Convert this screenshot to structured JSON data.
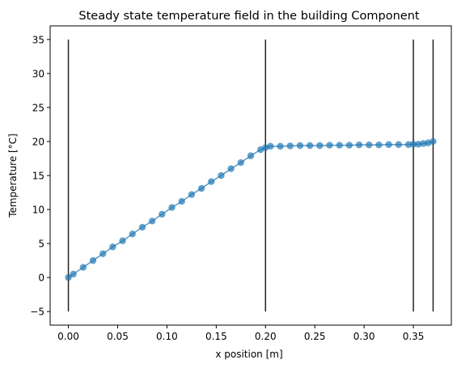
{
  "chart_data": {
    "type": "scatter",
    "title": "Steady state temperature field in the building Component",
    "xlabel": "x position [m]",
    "ylabel": "Temperature [°C]",
    "xlim": [
      -0.0185,
      0.3885
    ],
    "ylim": [
      -7,
      37
    ],
    "x_ticks": [
      0.0,
      0.05,
      0.1,
      0.15,
      0.2,
      0.25,
      0.3,
      0.35
    ],
    "x_tick_labels": [
      "0.00",
      "0.05",
      "0.10",
      "0.15",
      "0.20",
      "0.25",
      "0.30",
      "0.35"
    ],
    "y_ticks": [
      -5,
      0,
      5,
      10,
      15,
      20,
      25,
      30,
      35
    ],
    "y_tick_labels": [
      "−5",
      "0",
      "5",
      "10",
      "15",
      "20",
      "25",
      "30",
      "35"
    ],
    "grid": false,
    "point_color": "#1f77b4",
    "line_color": "#1f77b4",
    "boundary_color": "#222222",
    "boundaries": [
      {
        "x": 0.0,
        "y_range": [
          -5,
          35
        ]
      },
      {
        "x": 0.2,
        "y_range": [
          -5,
          35
        ]
      },
      {
        "x": 0.35,
        "y_range": [
          -5,
          35
        ]
      },
      {
        "x": 0.37,
        "y_range": [
          -5,
          35
        ]
      }
    ],
    "series": [
      {
        "x": [
          0.0,
          0.005,
          0.015,
          0.025,
          0.035,
          0.045,
          0.055,
          0.065,
          0.075,
          0.085,
          0.095,
          0.105,
          0.115,
          0.125,
          0.135,
          0.145,
          0.155,
          0.165,
          0.175,
          0.185,
          0.195,
          0.2,
          0.205,
          0.215,
          0.225,
          0.235,
          0.245,
          0.255,
          0.265,
          0.275,
          0.285,
          0.295,
          0.305,
          0.315,
          0.325,
          0.335,
          0.345,
          0.35,
          0.355,
          0.36,
          0.365,
          0.37
        ],
        "y": [
          0.0,
          0.5,
          1.5,
          2.5,
          3.5,
          4.5,
          5.4,
          6.4,
          7.4,
          8.3,
          9.3,
          10.3,
          11.2,
          12.2,
          13.1,
          14.1,
          15.0,
          16.0,
          16.9,
          17.9,
          18.8,
          19.1,
          19.3,
          19.3,
          19.35,
          19.4,
          19.4,
          19.4,
          19.45,
          19.45,
          19.45,
          19.5,
          19.5,
          19.5,
          19.55,
          19.55,
          19.55,
          19.6,
          19.6,
          19.7,
          19.8,
          20.0
        ]
      }
    ]
  }
}
